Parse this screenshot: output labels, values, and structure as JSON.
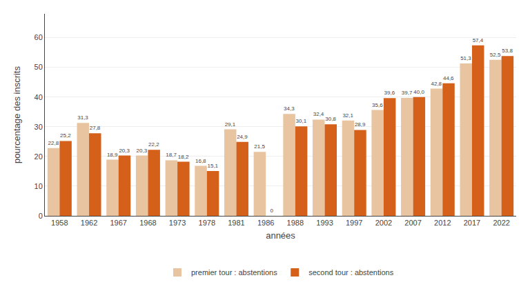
{
  "chart_data": {
    "type": "bar",
    "xlabel": "années",
    "ylabel": "pourcentage des inscrits",
    "categories": [
      "1958",
      "1962",
      "1967",
      "1968",
      "1973",
      "1978",
      "1981",
      "1986",
      "1988",
      "1993",
      "1997",
      "2002",
      "2007",
      "2012",
      "2017",
      "2022"
    ],
    "series": [
      {
        "name": "premier tour : abstentions",
        "color": "#e8c4a0",
        "values": [
          22.8,
          31.3,
          18.9,
          20.3,
          18.7,
          16.8,
          29.1,
          21.5,
          34.3,
          32.4,
          32.1,
          35.6,
          39.7,
          42.8,
          51.3,
          52.5
        ],
        "value_labels": [
          "22,8",
          "31,3",
          "18,9",
          "20,3",
          "18,7",
          "16,8",
          "29,1",
          "21,5",
          "34,3",
          "32,4",
          "32,1",
          "35,6",
          "39,7",
          "42,8",
          "51,3",
          "52,5"
        ]
      },
      {
        "name": "second tour : abstentions",
        "color": "#d4601a",
        "values": [
          25.2,
          27.8,
          20.3,
          22.2,
          18.2,
          15.1,
          24.9,
          0.0,
          30.1,
          30.8,
          28.9,
          39.6,
          40.0,
          44.6,
          57.4,
          53.8
        ],
        "value_labels": [
          "25,2",
          "27,8",
          "20,3",
          "22,2",
          "18,2",
          "15,1",
          "24,9",
          "0",
          "30,1",
          "30,8",
          "28,9",
          "39,6",
          "40,0",
          "44,6",
          "57,4",
          "53,8"
        ]
      }
    ],
    "ylim": [
      0,
      68
    ],
    "yticks": [
      0,
      10,
      20,
      30,
      40,
      50,
      60
    ],
    "grid": "y",
    "data_labels": true
  }
}
